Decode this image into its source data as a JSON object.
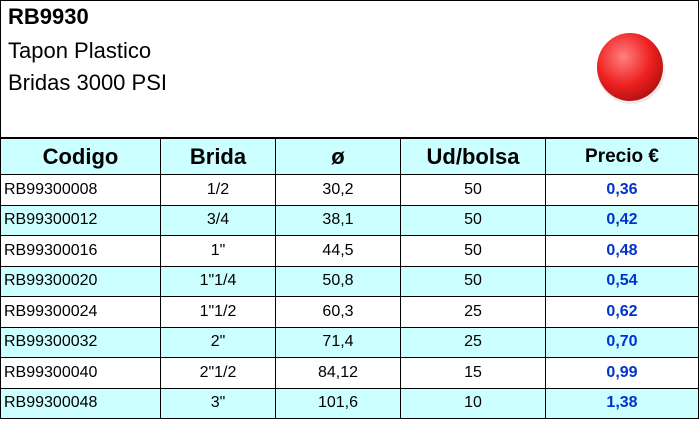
{
  "header": {
    "code": "RB9930",
    "lines": [
      "Tapon Plastico",
      "Bridas 3000 PSI"
    ]
  },
  "table": {
    "columns": [
      "Codigo",
      "Brida",
      "ø",
      "Ud/bolsa",
      "Precio €"
    ],
    "rows": [
      [
        "RB99300008",
        "1/2",
        "30,2",
        "50",
        "0,36"
      ],
      [
        "RB99300012",
        "3/4",
        "38,1",
        "50",
        "0,42"
      ],
      [
        "RB99300016",
        "1\"",
        "44,5",
        "50",
        "0,48"
      ],
      [
        "RB99300020",
        "1\"1/4",
        "50,8",
        "50",
        "0,54"
      ],
      [
        "RB99300024",
        "1\"1/2",
        "60,3",
        "25",
        "0,62"
      ],
      [
        "RB99300032",
        "2\"",
        "71,4",
        "25",
        "0,70"
      ],
      [
        "RB99300040",
        "2\"1/2",
        "84,12",
        "15",
        "0,99"
      ],
      [
        "RB99300048",
        "3\"",
        "101,6",
        "10",
        "1,38"
      ]
    ]
  }
}
